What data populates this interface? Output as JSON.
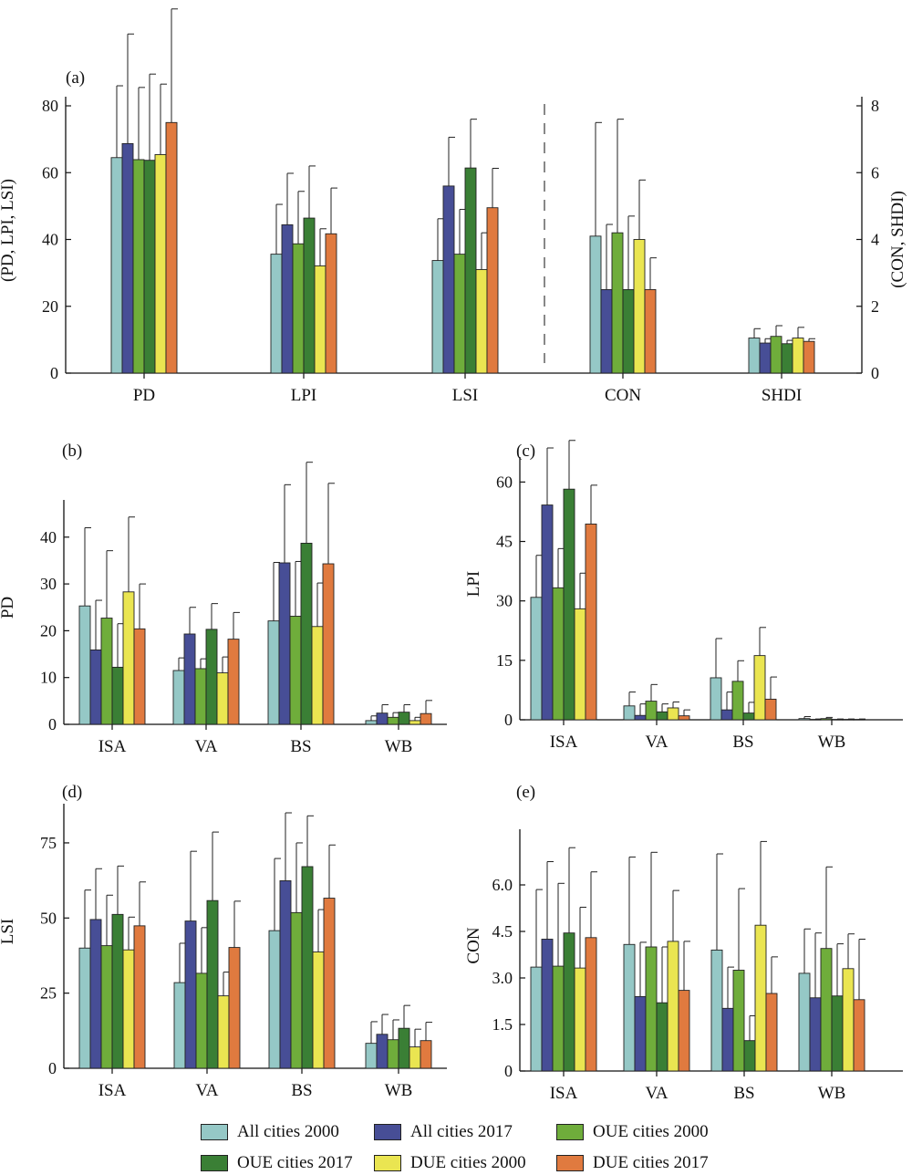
{
  "legend": {
    "entries": [
      {
        "name": "All cities 2000",
        "color": "#95c8c6"
      },
      {
        "name": "All cities 2017",
        "color": "#474e96"
      },
      {
        "name": "OUE cities 2000",
        "color": "#6fad3b"
      },
      {
        "name": "OUE cities 2017",
        "color": "#3a7f35"
      },
      {
        "name": "DUE cities 2000",
        "color": "#eae551"
      },
      {
        "name": "DUE cities 2017",
        "color": "#e07a3f"
      }
    ]
  },
  "chart_data": [
    {
      "panel": "(a)",
      "type": "bar",
      "categories": [
        "PD",
        "LPI",
        "LSI",
        "CON",
        "SHDI"
      ],
      "ylabel": "(PD, LPI, LSI)",
      "ylim": [
        0,
        80
      ],
      "yticks": [
        "0",
        "20",
        "40",
        "60",
        "80"
      ],
      "ylabel_right": "(CON, SHDI)",
      "ylim_right": [
        0,
        8
      ],
      "yticks_right": [
        "0",
        "2",
        "4",
        "6",
        "8"
      ],
      "right_axis_categories": [
        "CON",
        "SHDI"
      ],
      "divider": "dashed line between LSI and CON",
      "series": [
        {
          "values": [
            64.5,
            35.6,
            33.7,
            4.1,
            1.05
          ],
          "err": [
            86,
            50.5,
            46.2,
            7.5,
            1.33
          ]
        },
        {
          "values": [
            68.7,
            44.4,
            56.0,
            2.5,
            0.9
          ],
          "err": [
            101.5,
            59.8,
            70.6,
            4.45,
            1.03
          ]
        },
        {
          "values": [
            63.9,
            38.7,
            35.6,
            4.2,
            1.1
          ],
          "err": [
            85.5,
            54.4,
            49.0,
            7.6,
            1.42
          ]
        },
        {
          "values": [
            63.7,
            46.4,
            61.4,
            2.5,
            0.88
          ],
          "err": [
            89.5,
            62.0,
            76.0,
            4.7,
            0.98
          ]
        },
        {
          "values": [
            65.4,
            32.1,
            31.0,
            4.0,
            1.05
          ],
          "err": [
            86.5,
            43.2,
            42.0,
            5.78,
            1.37
          ]
        },
        {
          "values": [
            75.0,
            41.7,
            49.5,
            2.5,
            0.95
          ],
          "err": [
            109.0,
            55.4,
            61.3,
            3.45,
            1.03
          ]
        }
      ]
    },
    {
      "panel": "(b)",
      "type": "bar",
      "categories": [
        "ISA",
        "VA",
        "BS",
        "WB"
      ],
      "ylabel": "PD",
      "ylim": [
        0,
        46
      ],
      "yticks": [
        "0",
        "10",
        "20",
        "30",
        "40"
      ],
      "series": [
        {
          "values": [
            25.3,
            11.5,
            22.1,
            0.8
          ],
          "err": [
            42.0,
            14.2,
            34.6,
            1.8
          ]
        },
        {
          "values": [
            15.9,
            19.3,
            34.5,
            2.4
          ],
          "err": [
            26.5,
            25.0,
            51.2,
            4.2
          ]
        },
        {
          "values": [
            22.7,
            11.9,
            23.1,
            1.5
          ],
          "err": [
            37.1,
            14.0,
            34.8,
            2.5
          ]
        },
        {
          "values": [
            12.2,
            20.3,
            38.7,
            2.6
          ],
          "err": [
            21.5,
            25.8,
            56.0,
            4.2
          ]
        },
        {
          "values": [
            28.3,
            11.0,
            20.9,
            0.8
          ],
          "err": [
            44.3,
            14.4,
            30.2,
            1.5
          ]
        },
        {
          "values": [
            20.4,
            18.2,
            34.3,
            2.3
          ],
          "err": [
            30.0,
            23.9,
            51.5,
            5.1
          ]
        }
      ]
    },
    {
      "panel": "(c)",
      "type": "bar",
      "categories": [
        "ISA",
        "VA",
        "BS",
        "WB"
      ],
      "ylabel": "LPI",
      "ylim": [
        0,
        64
      ],
      "yticks": [
        "0",
        "15",
        "30",
        "45",
        "60"
      ],
      "series": [
        {
          "values": [
            30.9,
            3.5,
            10.6,
            0.3
          ],
          "err": [
            41.5,
            7.0,
            20.5,
            0.8
          ]
        },
        {
          "values": [
            54.2,
            1.1,
            2.5,
            0.1
          ],
          "err": [
            68.6,
            4.0,
            7.0,
            0.2
          ]
        },
        {
          "values": [
            33.3,
            4.7,
            9.7,
            0.3
          ],
          "err": [
            43.2,
            8.9,
            14.9,
            0.6
          ]
        },
        {
          "values": [
            58.2,
            2.0,
            1.7,
            0.1
          ],
          "err": [
            70.5,
            4.0,
            4.4,
            0.2
          ]
        },
        {
          "values": [
            28.0,
            3.0,
            16.2,
            0.1
          ],
          "err": [
            37.0,
            4.5,
            23.3,
            0.2
          ]
        },
        {
          "values": [
            49.4,
            1.0,
            5.2,
            0.1
          ],
          "err": [
            59.2,
            2.5,
            10.8,
            0.2
          ]
        }
      ]
    },
    {
      "panel": "(d)",
      "type": "bar",
      "categories": [
        "ISA",
        "VA",
        "BS",
        "WB"
      ],
      "ylabel": "LSI",
      "ylim": [
        0,
        85
      ],
      "yticks": [
        "0",
        "25",
        "50",
        "75"
      ],
      "series": [
        {
          "values": [
            40.0,
            28.5,
            45.8,
            8.3
          ],
          "err": [
            59.3,
            41.6,
            69.8,
            15.5
          ]
        },
        {
          "values": [
            49.5,
            49.0,
            62.4,
            11.3
          ],
          "err": [
            66.4,
            72.2,
            85.0,
            17.9
          ]
        },
        {
          "values": [
            40.8,
            31.6,
            51.8,
            9.5
          ],
          "err": [
            57.6,
            46.8,
            75.0,
            16.1
          ]
        },
        {
          "values": [
            51.2,
            55.8,
            67.1,
            13.3
          ],
          "err": [
            67.3,
            78.6,
            84.0,
            20.9
          ]
        },
        {
          "values": [
            39.4,
            24.1,
            38.7,
            7.1
          ],
          "err": [
            50.3,
            32.0,
            52.8,
            13.0
          ]
        },
        {
          "values": [
            47.4,
            40.2,
            56.6,
            9.2
          ],
          "err": [
            62.0,
            55.6,
            74.3,
            15.3
          ]
        }
      ]
    },
    {
      "panel": "(e)",
      "type": "bar",
      "categories": [
        "ISA",
        "VA",
        "BS",
        "WB"
      ],
      "ylabel": "CON",
      "ylim": [
        0,
        7.5
      ],
      "yticks": [
        "0",
        "1.5",
        "3.0",
        "4.5",
        "6.0"
      ],
      "series": [
        {
          "values": [
            3.35,
            4.08,
            3.9,
            3.15
          ],
          "err": [
            5.85,
            6.9,
            7.0,
            4.58
          ]
        },
        {
          "values": [
            4.25,
            2.4,
            2.02,
            2.36
          ],
          "err": [
            6.75,
            4.15,
            3.35,
            4.45
          ]
        },
        {
          "values": [
            3.38,
            4.0,
            3.25,
            3.95
          ],
          "err": [
            6.05,
            7.05,
            5.88,
            6.58
          ]
        },
        {
          "values": [
            4.45,
            2.2,
            0.98,
            2.42
          ],
          "err": [
            7.2,
            4.0,
            1.78,
            4.1
          ]
        },
        {
          "values": [
            3.32,
            4.18,
            4.7,
            3.3
          ],
          "err": [
            5.28,
            5.82,
            7.4,
            4.42
          ]
        },
        {
          "values": [
            4.3,
            2.6,
            2.5,
            2.3
          ],
          "err": [
            6.42,
            4.18,
            3.68,
            4.25
          ]
        }
      ]
    }
  ]
}
